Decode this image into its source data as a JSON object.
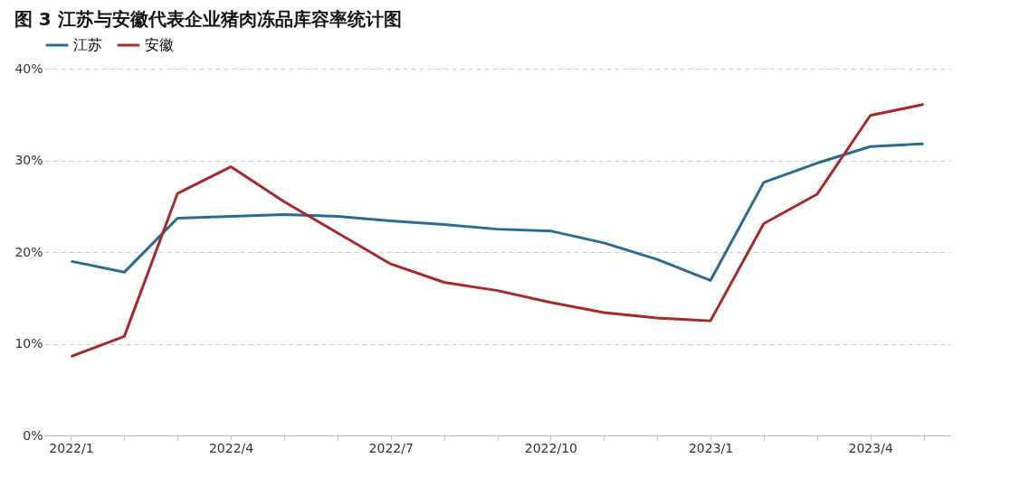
{
  "chart_data": {
    "type": "line",
    "title": "图 3 江苏与安徽代表企业猪肉冻品库容率统计图",
    "categories": [
      "2022/1",
      null,
      null,
      "2022/4",
      null,
      null,
      "2022/7",
      null,
      null,
      "2022/10",
      null,
      null,
      "2023/1",
      null,
      null,
      "2023/4",
      null
    ],
    "series": [
      {
        "name": "江苏",
        "color": "#2e6a8e",
        "values": [
          19.0,
          17.8,
          23.7,
          23.9,
          24.1,
          23.9,
          23.4,
          23.0,
          22.5,
          22.3,
          21.0,
          19.2,
          16.9,
          27.6,
          29.7,
          31.5,
          31.8
        ]
      },
      {
        "name": "安徽",
        "color": "#a52a2a",
        "values": [
          8.6,
          10.8,
          26.4,
          29.3,
          25.5,
          22.1,
          18.7,
          16.7,
          15.8,
          14.5,
          13.4,
          12.8,
          12.5,
          23.1,
          26.3,
          34.9,
          36.1
        ]
      }
    ],
    "ylim": [
      0,
      40
    ],
    "yticks": [
      {
        "value": 0,
        "label": "0%"
      },
      {
        "value": 10,
        "label": "10%"
      },
      {
        "value": 20,
        "label": "20%"
      },
      {
        "value": 30,
        "label": "30%"
      },
      {
        "value": 40,
        "label": "40%"
      }
    ],
    "grid": "y",
    "legend": "top",
    "marker": "none",
    "line_style": "solid"
  }
}
